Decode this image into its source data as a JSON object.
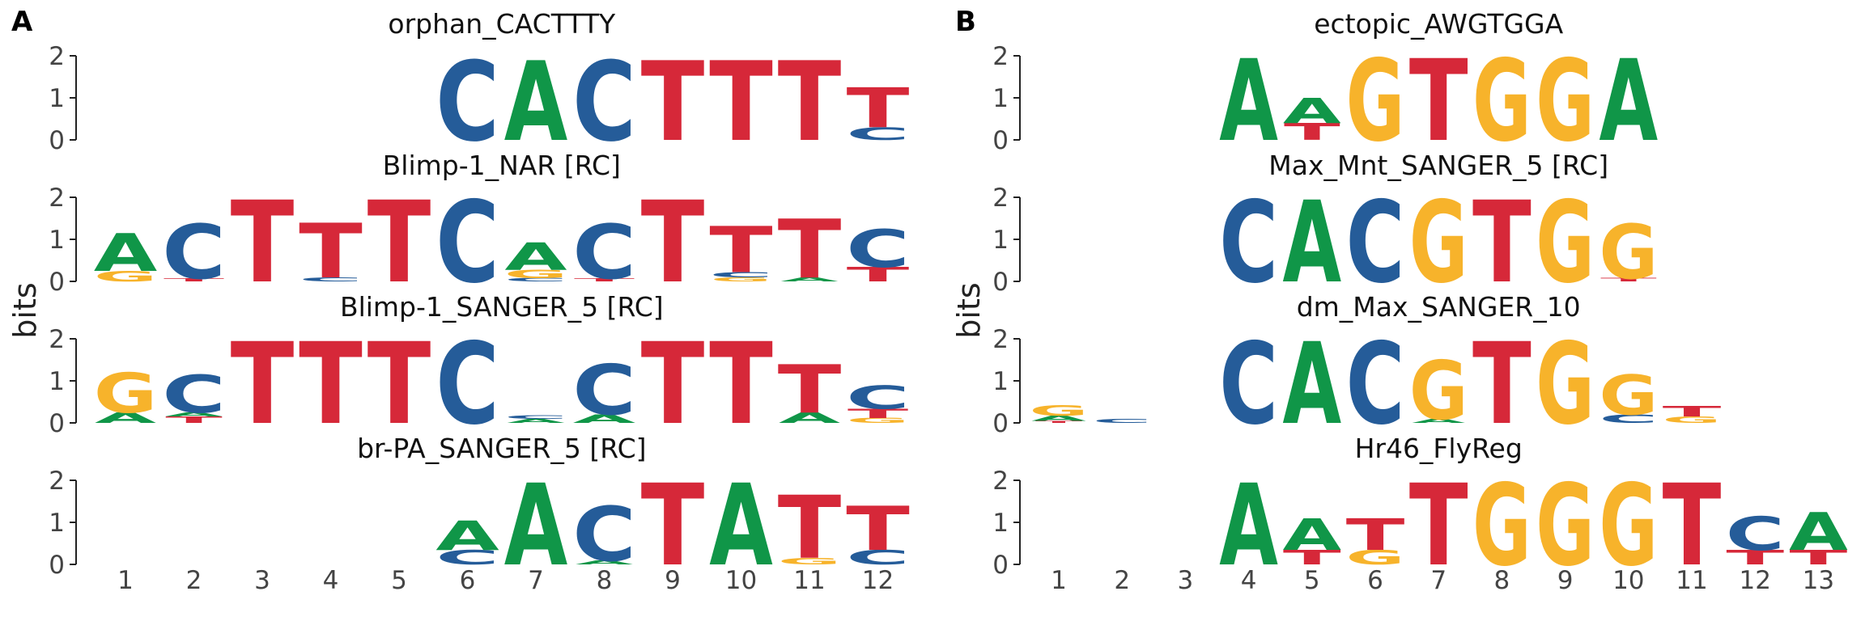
{
  "figure": {
    "panel_labels": [
      "A",
      "B"
    ],
    "y_axis_label": "bits",
    "y_ticks": [
      "0",
      "1",
      "2"
    ],
    "colors": {
      "A": "#109648",
      "C": "#255C99",
      "G": "#F7B32B",
      "T": "#D62839",
      "axis": "#222222",
      "tick_text": "#444444"
    }
  },
  "panels": [
    {
      "label": "A",
      "x_ticks": [
        "1",
        "2",
        "3",
        "4",
        "5",
        "6",
        "7",
        "8",
        "9",
        "10",
        "11",
        "12"
      ],
      "logos": [
        {
          "title": "orphan_CACTTTY",
          "positions": [
            [],
            [],
            [],
            [],
            [],
            [
              [
                "C",
                1.9
              ]
            ],
            [
              [
                "A",
                1.9
              ]
            ],
            [
              [
                "C",
                1.9
              ]
            ],
            [
              [
                "T",
                1.9
              ]
            ],
            [
              [
                "T",
                1.9
              ]
            ],
            [
              [
                "T",
                1.9
              ]
            ],
            [
              [
                "C",
                0.3
              ],
              [
                "T",
                0.95
              ]
            ]
          ]
        },
        {
          "title": "Blimp-1_NAR [RC]",
          "positions": [
            [
              [
                "G",
                0.25
              ],
              [
                "A",
                0.9
              ]
            ],
            [
              [
                "T",
                0.08
              ],
              [
                "C",
                1.3
              ]
            ],
            [
              [
                "T",
                1.95
              ]
            ],
            [
              [
                "C",
                0.1
              ],
              [
                "T",
                1.3
              ]
            ],
            [
              [
                "T",
                1.95
              ]
            ],
            [
              [
                "C",
                1.95
              ]
            ],
            [
              [
                "C",
                0.08
              ],
              [
                "G",
                0.2
              ],
              [
                "A",
                0.65
              ]
            ],
            [
              [
                "T",
                0.08
              ],
              [
                "C",
                1.3
              ]
            ],
            [
              [
                "T",
                1.95
              ]
            ],
            [
              [
                "G",
                0.1
              ],
              [
                "C",
                0.12
              ],
              [
                "T",
                1.1
              ]
            ],
            [
              [
                "A",
                0.1
              ],
              [
                "T",
                1.4
              ]
            ],
            [
              [
                "T",
                0.35
              ],
              [
                "C",
                0.9
              ]
            ]
          ]
        },
        {
          "title": "Blimp-1_SANGER_5 [RC]",
          "positions": [
            [
              [
                "A",
                0.25
              ],
              [
                "G",
                0.95
              ]
            ],
            [
              [
                "T",
                0.15
              ],
              [
                "A",
                0.1
              ],
              [
                "C",
                0.9
              ]
            ],
            [
              [
                "T",
                1.95
              ]
            ],
            [
              [
                "T",
                1.95
              ]
            ],
            [
              [
                "T",
                1.95
              ]
            ],
            [
              [
                "C",
                1.95
              ]
            ],
            [
              [
                "A",
                0.1
              ],
              [
                "C",
                0.08
              ]
            ],
            [
              [
                "A",
                0.2
              ],
              [
                "C",
                1.2
              ]
            ],
            [
              [
                "T",
                1.95
              ]
            ],
            [
              [
                "T",
                1.95
              ]
            ],
            [
              [
                "A",
                0.25
              ],
              [
                "T",
                1.15
              ]
            ],
            [
              [
                "G",
                0.12
              ],
              [
                "T",
                0.22
              ],
              [
                "C",
                0.55
              ]
            ]
          ]
        },
        {
          "title": "br-PA_SANGER_5 [RC]",
          "positions": [
            [],
            [],
            [],
            [],
            [],
            [
              [
                "C",
                0.35
              ],
              [
                "A",
                0.7
              ]
            ],
            [
              [
                "A",
                1.95
              ]
            ],
            [
              [
                "A",
                0.1
              ],
              [
                "C",
                1.3
              ]
            ],
            [
              [
                "T",
                1.95
              ]
            ],
            [
              [
                "A",
                1.95
              ]
            ],
            [
              [
                "G",
                0.15
              ],
              [
                "T",
                1.5
              ]
            ],
            [
              [
                "C",
                0.35
              ],
              [
                "T",
                1.05
              ]
            ]
          ]
        }
      ]
    },
    {
      "label": "B",
      "x_ticks": [
        "1",
        "2",
        "3",
        "4",
        "5",
        "6",
        "7",
        "8",
        "9",
        "10",
        "11",
        "12",
        "13"
      ],
      "logos": [
        {
          "title": "ectopic_AWGTGGA",
          "positions": [
            [],
            [],
            [],
            [
              [
                "A",
                1.95
              ]
            ],
            [
              [
                "T",
                0.4
              ],
              [
                "A",
                0.6
              ]
            ],
            [
              [
                "G",
                1.95
              ]
            ],
            [
              [
                "T",
                1.95
              ]
            ],
            [
              [
                "G",
                1.95
              ]
            ],
            [
              [
                "G",
                1.95
              ]
            ],
            [
              [
                "A",
                1.95
              ]
            ],
            [],
            [],
            []
          ]
        },
        {
          "title": "Max_Mnt_SANGER_5 [RC]",
          "positions": [
            [],
            [],
            [],
            [
              [
                "C",
                1.95
              ]
            ],
            [
              [
                "A",
                1.95
              ]
            ],
            [
              [
                "C",
                1.95
              ]
            ],
            [
              [
                "G",
                1.95
              ]
            ],
            [
              [
                "T",
                1.95
              ]
            ],
            [
              [
                "G",
                1.95
              ]
            ],
            [
              [
                "T",
                0.08
              ],
              [
                "G",
                1.3
              ]
            ],
            [],
            [],
            []
          ]
        },
        {
          "title": "dm_Max_SANGER_10",
          "positions": [
            [
              [
                "T",
                0.05
              ],
              [
                "A",
                0.12
              ],
              [
                "G",
                0.25
              ]
            ],
            [
              [
                "C",
                0.1
              ]
            ],
            [],
            [
              [
                "C",
                1.95
              ]
            ],
            [
              [
                "A",
                1.95
              ]
            ],
            [
              [
                "C",
                1.95
              ]
            ],
            [
              [
                "A",
                0.1
              ],
              [
                "G",
                1.4
              ]
            ],
            [
              [
                "T",
                1.95
              ]
            ],
            [
              [
                "G",
                1.95
              ]
            ],
            [
              [
                "C",
                0.2
              ],
              [
                "G",
                0.95
              ]
            ],
            [
              [
                "G",
                0.15
              ],
              [
                "T",
                0.25
              ]
            ],
            [],
            []
          ]
        },
        {
          "title": "Hr46_FlyReg",
          "positions": [
            [],
            [],
            [],
            [
              [
                "A",
                1.95
              ]
            ],
            [
              [
                "T",
                0.35
              ],
              [
                "A",
                0.75
              ]
            ],
            [
              [
                "G",
                0.35
              ],
              [
                "T",
                0.75
              ]
            ],
            [
              [
                "T",
                1.95
              ]
            ],
            [
              [
                "G",
                1.95
              ]
            ],
            [
              [
                "G",
                1.95
              ]
            ],
            [
              [
                "G",
                1.95
              ]
            ],
            [
              [
                "T",
                1.95
              ]
            ],
            [
              [
                "T",
                0.35
              ],
              [
                "C",
                0.8
              ]
            ],
            [
              [
                "T",
                0.35
              ],
              [
                "A",
                0.9
              ]
            ]
          ]
        }
      ]
    }
  ]
}
